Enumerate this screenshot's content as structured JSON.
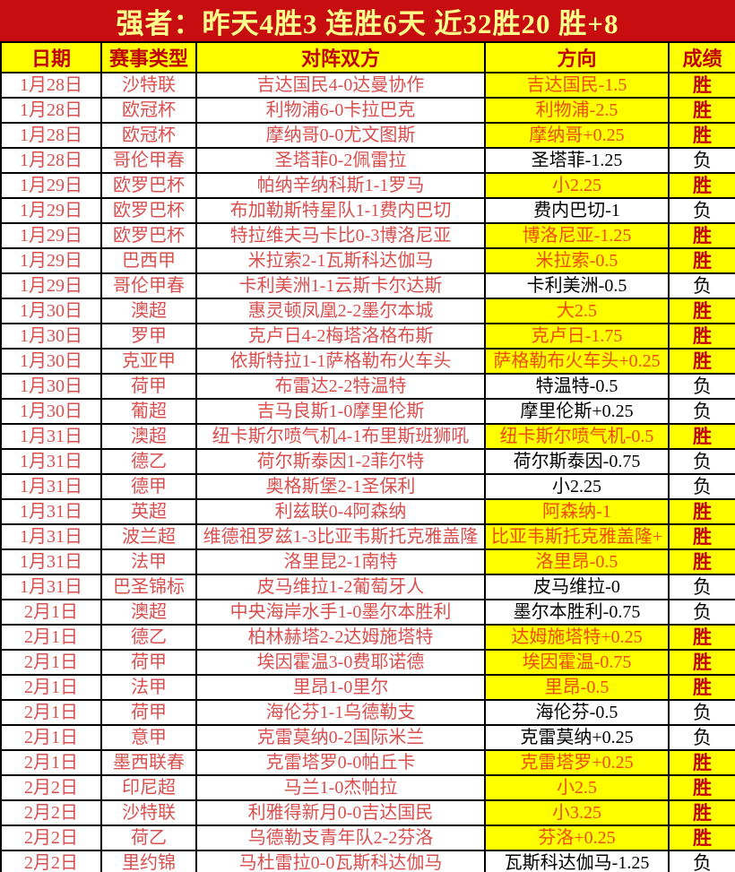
{
  "banner": {
    "title": "强者：昨天4胜3  连胜6天  近32胜20  胜+8"
  },
  "colors": {
    "banner_bg": "#c80d10",
    "banner_text": "#ffff8c",
    "header_bg": "#ffff00",
    "header_text": "#c00000",
    "row_text_red": "#d94f4f",
    "win_direction_text": "#ec4d00",
    "win_cell_bg": "#ffff00",
    "win_result_text": "#c00000",
    "loss_text": "#000000",
    "grid_border": "#000000"
  },
  "table": {
    "headers": [
      "日期",
      "赛事类型",
      "对阵双方",
      "方向",
      "成绩"
    ],
    "rows": [
      {
        "date": "1月28日",
        "league": "沙特联",
        "match": "吉达国民4-0达曼协作",
        "direction": "吉达国民-1.5",
        "result": "胜",
        "win": true
      },
      {
        "date": "1月28日",
        "league": "欧冠杯",
        "match": "利物浦6-0卡拉巴克",
        "direction": "利物浦-2.5",
        "result": "胜",
        "win": true
      },
      {
        "date": "1月28日",
        "league": "欧冠杯",
        "match": "摩纳哥0-0尤文图斯",
        "direction": "摩纳哥+0.25",
        "result": "胜",
        "win": true
      },
      {
        "date": "1月28日",
        "league": "哥伦甲春",
        "match": "圣塔菲0-2佩雷拉",
        "direction": "圣塔菲-1.25",
        "result": "负",
        "win": false
      },
      {
        "date": "1月29日",
        "league": "欧罗巴杯",
        "match": "帕纳辛纳科斯1-1罗马",
        "direction": "小2.25",
        "result": "胜",
        "win": true
      },
      {
        "date": "1月29日",
        "league": "欧罗巴杯",
        "match": "布加勒斯特星队1-1费内巴切",
        "direction": "费内巴切-1",
        "result": "负",
        "win": false
      },
      {
        "date": "1月29日",
        "league": "欧罗巴杯",
        "match": "特拉维夫马卡比0-3博洛尼亚",
        "direction": "博洛尼亚-1.25",
        "result": "胜",
        "win": true
      },
      {
        "date": "1月29日",
        "league": "巴西甲",
        "match": "米拉索2-1瓦斯科达伽马",
        "direction": "米拉索-0.5",
        "result": "胜",
        "win": true
      },
      {
        "date": "1月29日",
        "league": "哥伦甲春",
        "match": "卡利美洲1-1云斯卡尔达斯",
        "direction": "卡利美洲-0.5",
        "result": "负",
        "win": false
      },
      {
        "date": "1月30日",
        "league": "澳超",
        "match": "惠灵顿凤凰2-2墨尔本城",
        "direction": "大2.5",
        "result": "胜",
        "win": true
      },
      {
        "date": "1月30日",
        "league": "罗甲",
        "match": "克卢日4-2梅塔洛格布斯",
        "direction": "克卢日-1.75",
        "result": "胜",
        "win": true
      },
      {
        "date": "1月30日",
        "league": "克亚甲",
        "match": "依斯特拉1-1萨格勒布火车头",
        "direction": "萨格勒布火车头+0.25",
        "result": "胜",
        "win": true
      },
      {
        "date": "1月30日",
        "league": "荷甲",
        "match": "布雷达2-2特温特",
        "direction": "特温特-0.5",
        "result": "负",
        "win": false
      },
      {
        "date": "1月30日",
        "league": "葡超",
        "match": "吉马良斯1-0摩里伦斯",
        "direction": "摩里伦斯+0.25",
        "result": "负",
        "win": false
      },
      {
        "date": "1月31日",
        "league": "澳超",
        "match": "纽卡斯尔喷气机4-1布里斯班狮吼",
        "direction": "纽卡斯尔喷气机-0.5",
        "result": "胜",
        "win": true
      },
      {
        "date": "1月31日",
        "league": "德乙",
        "match": "荷尔斯泰因1-2菲尔特",
        "direction": "荷尔斯泰因-0.75",
        "result": "负",
        "win": false
      },
      {
        "date": "1月31日",
        "league": "德甲",
        "match": "奥格斯堡2-1圣保利",
        "direction": "小2.25",
        "result": "负",
        "win": false
      },
      {
        "date": "1月31日",
        "league": "英超",
        "match": "利兹联0-4阿森纳",
        "direction": "阿森纳-1",
        "result": "胜",
        "win": true
      },
      {
        "date": "1月31日",
        "league": "波兰超",
        "match": "维德祖罗兹1-3比亚韦斯托克雅盖隆",
        "direction": "比亚韦斯托克雅盖隆+",
        "result": "胜",
        "win": true
      },
      {
        "date": "1月31日",
        "league": "法甲",
        "match": "洛里昆2-1南特",
        "direction": "洛里昂-0.5",
        "result": "胜",
        "win": true
      },
      {
        "date": "1月31日",
        "league": "巴圣锦标",
        "match": "皮马维拉1-2葡萄牙人",
        "direction": "皮马维拉-0",
        "result": "负",
        "win": false
      },
      {
        "date": "2月1日",
        "league": "澳超",
        "match": "中央海岸水手1-0墨尔本胜利",
        "direction": "墨尔本胜利-0.75",
        "result": "负",
        "win": false
      },
      {
        "date": "2月1日",
        "league": "德乙",
        "match": "柏林赫塔2-2达姆施塔特",
        "direction": "达姆施塔特+0.25",
        "result": "胜",
        "win": true
      },
      {
        "date": "2月1日",
        "league": "荷甲",
        "match": "埃因霍温3-0费耶诺德",
        "direction": "埃因霍温-0.75",
        "result": "胜",
        "win": true
      },
      {
        "date": "2月1日",
        "league": "法甲",
        "match": "里昂1-0里尔",
        "direction": "里昂-0.5",
        "result": "胜",
        "win": true
      },
      {
        "date": "2月1日",
        "league": "荷甲",
        "match": "海伦芬1-1乌德勒支",
        "direction": "海伦芬-0.5",
        "result": "负",
        "win": false
      },
      {
        "date": "2月1日",
        "league": "意甲",
        "match": "克雷莫纳0-2国际米兰",
        "direction": "克雷莫纳+0.25",
        "result": "负",
        "win": false
      },
      {
        "date": "2月1日",
        "league": "墨西联春",
        "match": "克雷塔罗0-0帕丘卡",
        "direction": "克雷塔罗+0.25",
        "result": "胜",
        "win": true
      },
      {
        "date": "2月2日",
        "league": "印尼超",
        "match": "马兰1-0杰帕拉",
        "direction": "小2.5",
        "result": "胜",
        "win": true
      },
      {
        "date": "2月2日",
        "league": "沙特联",
        "match": "利雅得新月0-0吉达国民",
        "direction": "小3.25",
        "result": "胜",
        "win": true
      },
      {
        "date": "2月2日",
        "league": "荷乙",
        "match": "乌德勒支青年队2-2芬洛",
        "direction": "芬洛+0.25",
        "result": "胜",
        "win": true
      },
      {
        "date": "2月2日",
        "league": "里约锦",
        "match": "马杜雷拉0-0瓦斯科达伽马",
        "direction": "瓦斯科达伽马-1.25",
        "result": "负",
        "win": false
      }
    ]
  }
}
